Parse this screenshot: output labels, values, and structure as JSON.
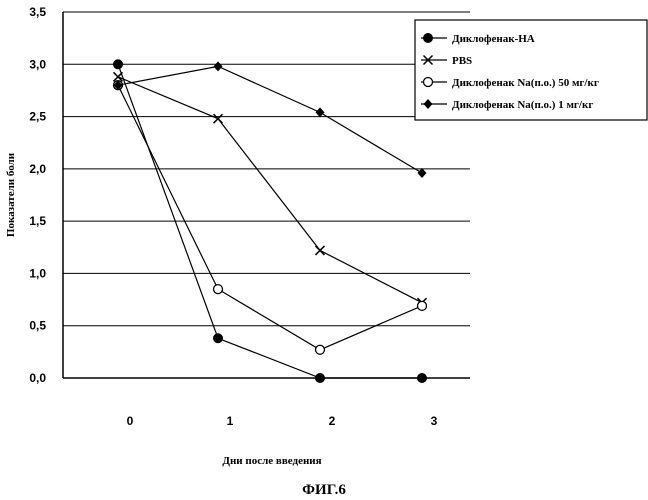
{
  "figure_label": "ФИГ.6",
  "chart_data": {
    "type": "line",
    "title": "",
    "xlabel": "Дни после введения",
    "ylabel": "Показатели боли",
    "x": [
      0,
      1,
      2,
      3
    ],
    "x_tick_labels": [
      "0",
      "1",
      "2",
      "3"
    ],
    "ylim": [
      0,
      3.5
    ],
    "y_tick_labels": [
      "0,0",
      "0,5",
      "1,0",
      "1,5",
      "2,0",
      "2,5",
      "3,0",
      "3,5"
    ],
    "grid": true,
    "legend_position": "top-right",
    "series": [
      {
        "name": "Диклофенак-НА",
        "marker": "filled-circle",
        "values": [
          3.0,
          0.38,
          0.0,
          0.0
        ]
      },
      {
        "name": "PBS",
        "marker": "cross",
        "values": [
          2.88,
          2.48,
          1.22,
          0.72
        ]
      },
      {
        "name": "Диклофенак Na(п.о.) 50 мг/кг",
        "marker": "open-circle",
        "values": [
          2.8,
          0.85,
          0.27,
          0.69
        ]
      },
      {
        "name": "Диклофенак Na(п.о.) 1 мг/кг",
        "marker": "filled-diamond",
        "values": [
          2.8,
          2.98,
          2.54,
          1.96
        ]
      }
    ]
  }
}
